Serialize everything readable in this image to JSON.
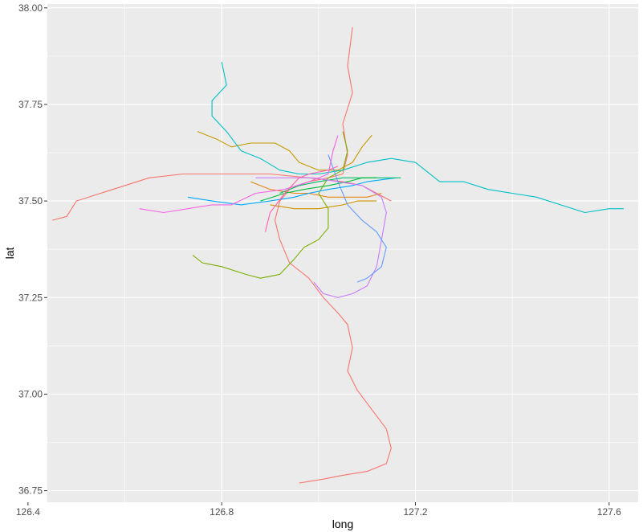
{
  "chart_data": {
    "type": "line",
    "title": "",
    "xlabel": "long",
    "ylabel": "lat",
    "xlim": [
      126.44,
      127.66
    ],
    "ylim": [
      36.72,
      38.01
    ],
    "x_ticks": [
      126.4,
      126.8,
      127.2,
      127.6
    ],
    "x_tick_labels": [
      "126.4",
      "126.8",
      "127.2",
      "127.6"
    ],
    "y_ticks": [
      36.75,
      37.0,
      37.25,
      37.5,
      37.75,
      38.0
    ],
    "y_tick_labels": [
      "36.75",
      "37.00",
      "37.25",
      "37.50",
      "37.75",
      "38.00"
    ],
    "grid": true,
    "legend": "none",
    "series": [
      {
        "color": "#F8766D",
        "points": [
          [
            126.96,
            36.77
          ],
          [
            127.01,
            36.78
          ],
          [
            127.05,
            36.79
          ],
          [
            127.1,
            36.8
          ],
          [
            127.14,
            36.82
          ],
          [
            127.15,
            36.86
          ],
          [
            127.14,
            36.91
          ],
          [
            127.11,
            36.96
          ],
          [
            127.08,
            37.01
          ],
          [
            127.06,
            37.06
          ],
          [
            127.07,
            37.12
          ],
          [
            127.06,
            37.18
          ],
          [
            127.04,
            37.21
          ],
          [
            127.01,
            37.25
          ],
          [
            126.98,
            37.3
          ],
          [
            126.94,
            37.34
          ],
          [
            126.92,
            37.4
          ],
          [
            126.91,
            37.45
          ],
          [
            126.92,
            37.5
          ],
          [
            126.94,
            37.53
          ],
          [
            126.98,
            37.55
          ],
          [
            127.02,
            37.56
          ],
          [
            127.05,
            37.57
          ],
          [
            127.06,
            37.62
          ],
          [
            127.05,
            37.7
          ],
          [
            127.07,
            37.78
          ],
          [
            127.06,
            37.85
          ],
          [
            127.07,
            37.95
          ]
        ]
      },
      {
        "color": "#F8766D",
        "points": [
          [
            126.45,
            37.45
          ],
          [
            126.48,
            37.46
          ],
          [
            126.5,
            37.5
          ],
          [
            126.55,
            37.52
          ],
          [
            126.65,
            37.56
          ],
          [
            126.72,
            37.57
          ],
          [
            126.82,
            37.57
          ],
          [
            126.9,
            37.57
          ],
          [
            126.98,
            37.56
          ],
          [
            127.05,
            37.55
          ],
          [
            127.09,
            37.54
          ],
          [
            127.12,
            37.52
          ],
          [
            127.15,
            37.5
          ]
        ]
      },
      {
        "color": "#C49A00",
        "points": [
          [
            126.75,
            37.68
          ],
          [
            126.79,
            37.66
          ],
          [
            126.82,
            37.64
          ],
          [
            126.86,
            37.65
          ],
          [
            126.91,
            37.65
          ],
          [
            126.94,
            37.63
          ],
          [
            126.96,
            37.6
          ],
          [
            127.0,
            37.58
          ],
          [
            127.04,
            37.58
          ],
          [
            127.07,
            37.6
          ],
          [
            127.09,
            37.64
          ],
          [
            127.11,
            37.67
          ]
        ]
      },
      {
        "color": "#E68613",
        "points": [
          [
            126.86,
            37.55
          ],
          [
            126.9,
            37.53
          ],
          [
            126.95,
            37.52
          ],
          [
            126.98,
            37.52
          ],
          [
            127.02,
            37.51
          ],
          [
            127.06,
            37.51
          ],
          [
            127.1,
            37.51
          ],
          [
            127.13,
            37.52
          ]
        ]
      },
      {
        "color": "#CD9600",
        "points": [
          [
            126.9,
            37.49
          ],
          [
            126.95,
            37.48
          ],
          [
            127.0,
            37.48
          ],
          [
            127.05,
            37.49
          ],
          [
            127.08,
            37.5
          ],
          [
            127.12,
            37.5
          ]
        ]
      },
      {
        "color": "#7CAE00",
        "points": [
          [
            126.74,
            37.36
          ],
          [
            126.76,
            37.34
          ],
          [
            126.8,
            37.33
          ],
          [
            126.85,
            37.31
          ],
          [
            126.88,
            37.3
          ],
          [
            126.92,
            37.31
          ],
          [
            126.95,
            37.35
          ],
          [
            126.97,
            37.38
          ],
          [
            127.0,
            37.4
          ],
          [
            127.02,
            37.43
          ],
          [
            127.02,
            37.48
          ],
          [
            127.0,
            37.52
          ],
          [
            127.02,
            37.56
          ],
          [
            127.05,
            37.58
          ],
          [
            127.06,
            37.63
          ],
          [
            127.05,
            37.68
          ]
        ]
      },
      {
        "color": "#00A9FF",
        "points": [
          [
            126.73,
            37.51
          ],
          [
            126.78,
            37.5
          ],
          [
            126.84,
            37.49
          ],
          [
            126.9,
            37.5
          ],
          [
            126.95,
            37.51
          ],
          [
            126.98,
            37.52
          ],
          [
            127.02,
            37.53
          ],
          [
            127.07,
            37.54
          ],
          [
            127.1,
            37.55
          ],
          [
            127.16,
            37.56
          ]
        ]
      },
      {
        "color": "#00BE67",
        "points": [
          [
            126.92,
            37.52
          ],
          [
            126.96,
            37.54
          ],
          [
            127.0,
            37.55
          ],
          [
            127.05,
            37.56
          ],
          [
            127.09,
            37.56
          ],
          [
            127.13,
            37.56
          ],
          [
            127.17,
            37.56
          ]
        ]
      },
      {
        "color": "#00BFC4",
        "points": [
          [
            126.8,
            37.86
          ],
          [
            126.81,
            37.8
          ],
          [
            126.78,
            37.76
          ],
          [
            126.78,
            37.72
          ],
          [
            126.81,
            37.68
          ],
          [
            126.84,
            37.63
          ],
          [
            126.88,
            37.61
          ],
          [
            126.92,
            37.58
          ],
          [
            126.96,
            37.57
          ],
          [
            127.0,
            37.57
          ],
          [
            127.05,
            37.58
          ],
          [
            127.1,
            37.6
          ],
          [
            127.15,
            37.61
          ],
          [
            127.2,
            37.6
          ],
          [
            127.25,
            37.55
          ],
          [
            127.3,
            37.55
          ],
          [
            127.35,
            37.53
          ],
          [
            127.45,
            37.51
          ],
          [
            127.5,
            37.49
          ],
          [
            127.55,
            37.47
          ],
          [
            127.6,
            37.48
          ],
          [
            127.63,
            37.48
          ]
        ]
      },
      {
        "color": "#00BA38",
        "points": [
          [
            126.88,
            37.5
          ],
          [
            126.93,
            37.52
          ],
          [
            126.97,
            37.53
          ],
          [
            127.02,
            37.54
          ],
          [
            127.06,
            37.55
          ],
          [
            127.09,
            37.56
          ],
          [
            127.12,
            37.56
          ]
        ]
      },
      {
        "color": "#C77CFF",
        "points": [
          [
            126.87,
            37.56
          ],
          [
            126.93,
            37.56
          ],
          [
            126.99,
            37.56
          ],
          [
            127.04,
            37.55
          ],
          [
            127.09,
            37.54
          ],
          [
            127.13,
            37.51
          ],
          [
            127.14,
            37.47
          ],
          [
            127.13,
            37.4
          ],
          [
            127.12,
            37.33
          ],
          [
            127.1,
            37.28
          ],
          [
            127.07,
            37.26
          ],
          [
            127.04,
            37.25
          ],
          [
            127.01,
            37.26
          ],
          [
            126.99,
            37.29
          ]
        ]
      },
      {
        "color": "#619CFF",
        "points": [
          [
            127.02,
            37.62
          ],
          [
            127.04,
            37.55
          ],
          [
            127.06,
            37.49
          ],
          [
            127.09,
            37.45
          ],
          [
            127.12,
            37.42
          ],
          [
            127.14,
            37.38
          ],
          [
            127.13,
            37.33
          ],
          [
            127.1,
            37.3
          ],
          [
            127.08,
            37.29
          ]
        ]
      },
      {
        "color": "#F564E3",
        "points": [
          [
            126.63,
            37.48
          ],
          [
            126.68,
            37.47
          ],
          [
            126.73,
            37.48
          ],
          [
            126.78,
            37.49
          ],
          [
            126.82,
            37.49
          ],
          [
            126.87,
            37.52
          ],
          [
            126.93,
            37.53
          ],
          [
            126.98,
            37.55
          ],
          [
            127.02,
            37.57
          ],
          [
            127.03,
            37.63
          ],
          [
            127.04,
            37.67
          ]
        ]
      },
      {
        "color": "#FF64B0",
        "points": [
          [
            126.89,
            37.42
          ],
          [
            126.9,
            37.47
          ],
          [
            126.93,
            37.52
          ],
          [
            126.96,
            37.56
          ],
          [
            126.98,
            37.57
          ],
          [
            127.02,
            37.58
          ],
          [
            127.04,
            37.59
          ]
        ]
      }
    ]
  }
}
